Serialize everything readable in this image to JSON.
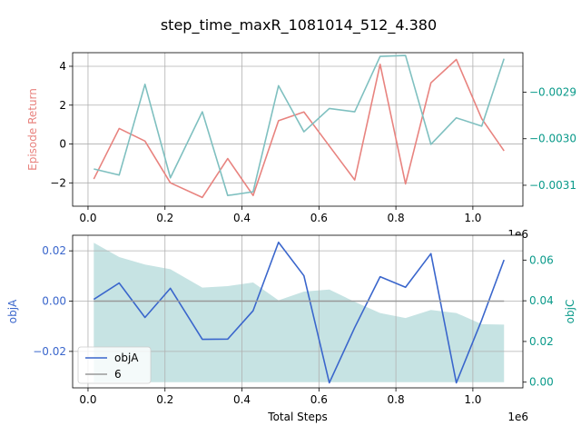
{
  "title": "step_time_maxR_1081014_512_4.380",
  "colors": {
    "episode_return": "#e8837f",
    "right_top": "#7fc0c0",
    "right_top_axis": "#0a9a8a",
    "objA": "#3a66cc",
    "objA_axis": "#3a66cc",
    "objC_fill": "#c6e3e3",
    "objC_axis": "#0a9a8a",
    "six_line": "#999999",
    "grid": "#b0b0b0"
  },
  "chart_data": [
    {
      "type": "line",
      "ylabel": "Episode Return",
      "y2label": "",
      "x_offset_label": "1e6",
      "xlim": [
        -0.04,
        1.13
      ],
      "ylim": [
        -3.2,
        4.7
      ],
      "y2lim": [
        -0.003145,
        -0.002815
      ],
      "xticks": [
        0.0,
        0.2,
        0.4,
        0.6,
        0.8,
        1.0
      ],
      "xtick_labels": [
        "0.0",
        "0.2",
        "0.4",
        "0.6",
        "0.8",
        "1.0"
      ],
      "yticks": [
        -2,
        0,
        2,
        4
      ],
      "ytick_labels": [
        "−2",
        "0",
        "2",
        "4"
      ],
      "y2ticks": [
        -0.0031,
        -0.003,
        -0.0029
      ],
      "y2tick_labels": [
        "−0.0031",
        "−0.0030",
        "−0.0029"
      ],
      "grid": true,
      "series": [
        {
          "axis": "left",
          "x": [
            0.015,
            0.081,
            0.148,
            0.214,
            0.297,
            0.363,
            0.429,
            0.495,
            0.561,
            0.627,
            0.693,
            0.759,
            0.825,
            0.891,
            0.957,
            1.023,
            1.081
          ],
          "values": [
            -1.8,
            0.8,
            0.15,
            -2.0,
            -2.75,
            -0.75,
            -2.65,
            1.2,
            1.65,
            -0.1,
            -1.85,
            4.1,
            -2.05,
            3.15,
            4.35,
            1.3,
            -0.35
          ]
        },
        {
          "axis": "right",
          "x": [
            0.015,
            0.081,
            0.148,
            0.214,
            0.297,
            0.363,
            0.429,
            0.495,
            0.561,
            0.627,
            0.693,
            0.759,
            0.825,
            0.891,
            0.957,
            1.023,
            1.081
          ],
          "values": [
            -0.003065,
            -0.003078,
            -0.002883,
            -0.003084,
            -0.002942,
            -0.003122,
            -0.003114,
            -0.002886,
            -0.002985,
            -0.002935,
            -0.002942,
            -0.002823,
            -0.002821,
            -0.003012,
            -0.002955,
            -0.002973,
            -0.002828
          ]
        }
      ]
    },
    {
      "type": "line",
      "xlabel": "Total Steps",
      "ylabel": "objA",
      "y2label": "objC",
      "x_offset_label": "1e6",
      "xlim": [
        -0.04,
        1.13
      ],
      "ylim": [
        -0.0345,
        0.0262
      ],
      "y2lim": [
        -0.0028,
        0.0722
      ],
      "xticks": [
        0.0,
        0.2,
        0.4,
        0.6,
        0.8,
        1.0
      ],
      "xtick_labels": [
        "0.0",
        "0.2",
        "0.4",
        "0.6",
        "0.8",
        "1.0"
      ],
      "yticks": [
        -0.02,
        0.0,
        0.02
      ],
      "ytick_labels": [
        "−0.02",
        "0.00",
        "0.02"
      ],
      "y2ticks": [
        0.0,
        0.02,
        0.04,
        0.06
      ],
      "y2tick_labels": [
        "0.00",
        "0.02",
        "0.04",
        "0.06"
      ],
      "grid": true,
      "legend": {
        "placement": "lower-left",
        "entries": [
          {
            "label": "objA",
            "series": "objA"
          },
          {
            "label": "6",
            "series": "six"
          }
        ]
      },
      "series": [
        {
          "key": "objA",
          "name": "objA",
          "axis": "left",
          "x": [
            0.015,
            0.081,
            0.148,
            0.214,
            0.297,
            0.363,
            0.429,
            0.495,
            0.561,
            0.627,
            0.693,
            0.759,
            0.825,
            0.891,
            0.957,
            1.023,
            1.081
          ],
          "values": [
            0.0007,
            0.0072,
            -0.0065,
            0.0051,
            -0.0152,
            -0.0151,
            -0.0038,
            0.0234,
            0.0101,
            -0.0325,
            -0.0105,
            0.0097,
            0.0055,
            0.0189,
            -0.0325,
            -0.0075,
            0.0164
          ]
        },
        {
          "key": "six",
          "name": "6",
          "axis": "left",
          "x": [
            0.015,
            1.081
          ],
          "values": [
            0.0,
            0.0
          ]
        },
        {
          "key": "objC",
          "axis": "right",
          "fill": true,
          "x": [
            0.015,
            0.081,
            0.148,
            0.214,
            0.297,
            0.363,
            0.429,
            0.495,
            0.561,
            0.627,
            0.693,
            0.759,
            0.825,
            0.891,
            0.957,
            1.023,
            1.081
          ],
          "values": [
            0.0685,
            0.0615,
            0.0578,
            0.0555,
            0.0465,
            0.0472,
            0.049,
            0.0402,
            0.0445,
            0.0455,
            0.0395,
            0.034,
            0.0315,
            0.0355,
            0.034,
            0.0285,
            0.0283
          ]
        }
      ]
    }
  ]
}
